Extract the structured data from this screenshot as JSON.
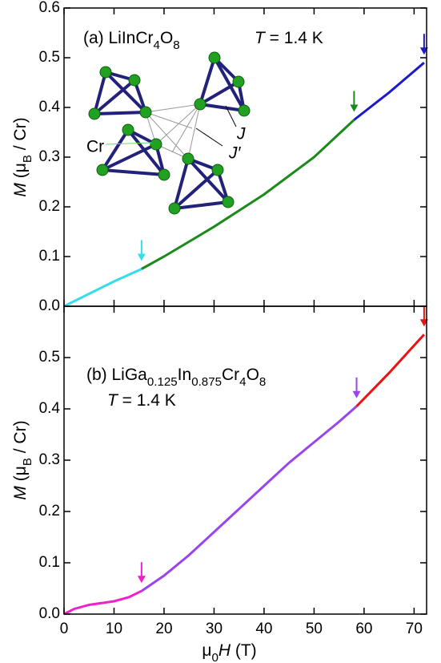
{
  "chart_data": [
    {
      "type": "line",
      "label_parts": [
        {
          "text": "(a) LiInCr"
        },
        {
          "text": "4",
          "sub": true
        },
        {
          "text": "O"
        },
        {
          "text": "8",
          "sub": true
        }
      ],
      "temp_parts": [
        {
          "text": "T",
          "italic": true
        },
        {
          "text": " = 1.4 K"
        }
      ],
      "ylabel_parts": [
        {
          "text": "M",
          "italic": true
        },
        {
          "text": " (μ"
        },
        {
          "text": "B",
          "sub": true
        },
        {
          "text": " / Cr)"
        }
      ],
      "inset_labels": [
        "Cr",
        "J",
        "J′"
      ],
      "xlim": [
        0,
        72.5
      ],
      "xticks": [
        0,
        10,
        20,
        30,
        40,
        50,
        60,
        70
      ],
      "ylim": [
        0,
        0.6
      ],
      "yticks": [
        {
          "value": 0,
          "label": "0.0"
        },
        0.1,
        0.2,
        0.3,
        0.4,
        0.5,
        0.6
      ],
      "series": [
        {
          "color": "#33ddee",
          "x": [
            0,
            2,
            5,
            10,
            15.5
          ],
          "values": [
            0,
            0.01,
            0.025,
            0.05,
            0.075
          ]
        },
        {
          "color": "#1a8a1a",
          "x": [
            15.5,
            20,
            30,
            40,
            50,
            58
          ],
          "values": [
            0.075,
            0.1,
            0.16,
            0.225,
            0.3,
            0.375
          ]
        },
        {
          "color": "#1a1acc",
          "x": [
            58,
            65,
            72
          ],
          "values": [
            0.375,
            0.43,
            0.49
          ]
        }
      ],
      "arrows": [
        {
          "x": 15.5,
          "color": "#33ddee"
        },
        {
          "x": 58,
          "color": "#1a8a1a"
        },
        {
          "x": 72,
          "color": "#1a1acc"
        }
      ]
    },
    {
      "type": "line",
      "label_parts": [
        {
          "text": "(b) LiGa"
        },
        {
          "text": "0.125",
          "sub": true
        },
        {
          "text": "In"
        },
        {
          "text": "0.875",
          "sub": true
        },
        {
          "text": "Cr"
        },
        {
          "text": "4",
          "sub": true
        },
        {
          "text": "O"
        },
        {
          "text": "8",
          "sub": true
        }
      ],
      "temp_parts": [
        {
          "text": "T",
          "italic": true
        },
        {
          "text": " = 1.4 K"
        }
      ],
      "ylabel_parts": [
        {
          "text": "M",
          "italic": true
        },
        {
          "text": " (μ"
        },
        {
          "text": "B",
          "sub": true
        },
        {
          "text": " / Cr)"
        }
      ],
      "xlabel_parts": [
        {
          "text": "μ"
        },
        {
          "text": "0",
          "sub": true
        },
        {
          "text": "H",
          "italic": true
        },
        {
          "text": " (T)"
        }
      ],
      "xlim": [
        0,
        72.5
      ],
      "xticks": [
        0,
        10,
        20,
        30,
        40,
        50,
        60,
        70
      ],
      "ylim": [
        0,
        0.6
      ],
      "yticks": [
        {
          "value": 0,
          "label": "0.0"
        },
        0.1,
        0.2,
        0.3,
        0.4,
        0.5
      ],
      "series": [
        {
          "color": "#ee22cc",
          "x": [
            0,
            2,
            5,
            10,
            13,
            15.5
          ],
          "values": [
            0,
            0.01,
            0.018,
            0.025,
            0.033,
            0.045
          ]
        },
        {
          "color": "#9944ee",
          "x": [
            15.5,
            20,
            25,
            30,
            35,
            40,
            45,
            50,
            55,
            58.5
          ],
          "values": [
            0.045,
            0.075,
            0.115,
            0.16,
            0.205,
            0.25,
            0.295,
            0.335,
            0.375,
            0.405
          ]
        },
        {
          "color": "#ee1111",
          "x": [
            58.5,
            65,
            72
          ],
          "values": [
            0.405,
            0.47,
            0.545
          ]
        }
      ],
      "arrows": [
        {
          "x": 15.5,
          "color": "#ee22cc"
        },
        {
          "x": 58.5,
          "color": "#9944ee"
        },
        {
          "x": 72,
          "color": "#ee1111"
        }
      ]
    }
  ]
}
